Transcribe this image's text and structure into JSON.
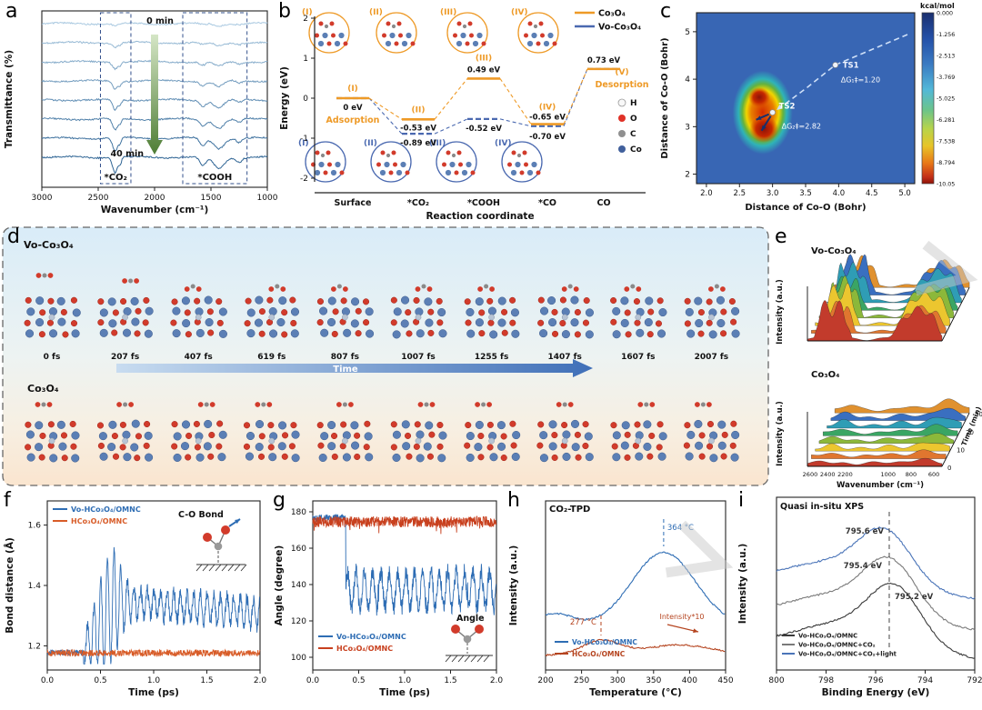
{
  "figure": {
    "panel_labels": {
      "a": "a",
      "b": "b",
      "c": "c",
      "d": "d",
      "e": "e",
      "f": "f",
      "g": "g",
      "h": "h",
      "i": "i"
    }
  },
  "chart_data": [
    {
      "id": "a",
      "type": "line",
      "kind": "ftir-spectra",
      "xlabel": "Wavenumber (cm⁻¹)",
      "ylabel": "Transmittance (%)",
      "xticks": [
        3000,
        2500,
        2000,
        1500,
        1000
      ],
      "x_range": [
        3000,
        1000
      ],
      "n_spectra": 8,
      "annotations": {
        "time_start": "0 min",
        "time_end": "40 min",
        "band1": "*CO₂",
        "band2": "*COOH"
      },
      "bands": {
        "co2_center": 2350,
        "cooh_center": 1460
      },
      "colors": {
        "light": "#a8c8e0",
        "dark": "#2e6494",
        "arrow_top": "#d5e6c6",
        "arrow_bottom": "#4e7d35",
        "box": "#33508c"
      }
    },
    {
      "id": "b",
      "type": "line",
      "kind": "energy-diagram",
      "xlabel": "Reaction coordinate",
      "ylabel": "Energy (eV)",
      "yticks": [
        2,
        1,
        0,
        -1,
        -2
      ],
      "ylim": [
        -2,
        2
      ],
      "categories": [
        "Surface",
        "*CO₂",
        "*COOH",
        "*CO",
        "CO"
      ],
      "series": [
        {
          "name": "Co₃O₄",
          "color": "#ee9a27",
          "style": "solid",
          "values": [
            0,
            -0.53,
            0.49,
            -0.65,
            0.73
          ],
          "value_labels": [
            "0 eV",
            "-0.53 eV",
            "0.49 eV",
            "-0.65 eV",
            "0.73 eV"
          ]
        },
        {
          "name": "Vo-Co₃O₄",
          "color": "#4a69b0",
          "style": "dashed",
          "values": [
            0,
            -0.89,
            -0.52,
            -0.7,
            0.73
          ],
          "value_labels": [
            "",
            "-0.89 eV",
            "-0.52 eV",
            "-0.70 eV",
            ""
          ]
        }
      ],
      "state_labels_top": [
        "(I)",
        "(II)",
        "(III)",
        "(IV)"
      ],
      "state_labels_bottom": [
        "(I)",
        "(II)",
        "(III)",
        "(IV)"
      ],
      "state_label_v": "(V)",
      "phase_labels": {
        "adsorption": "Adsorption",
        "desorption": "Desorption"
      },
      "atom_legend": [
        {
          "name": "H",
          "color": "#f8f8f8"
        },
        {
          "name": "O",
          "color": "#e03127"
        },
        {
          "name": "C",
          "color": "#909090"
        },
        {
          "name": "Co",
          "color": "#41609c"
        }
      ]
    },
    {
      "id": "c",
      "type": "heatmap",
      "kind": "free-energy-surface",
      "xlabel": "Distance of Co-O (Bohr)",
      "ylabel": "Distance of Co-O (Bohr)",
      "xticks": [
        2.0,
        2.5,
        3.0,
        3.5,
        4.0,
        4.5,
        5.0
      ],
      "yticks": [
        2,
        3,
        4,
        5
      ],
      "xlim": [
        1.85,
        5.15
      ],
      "ylim": [
        1.8,
        5.4
      ],
      "colorbar": {
        "title": "kcal/mol",
        "ticks": [
          "0.000",
          "-1.256",
          "-2.513",
          "-3.769",
          "-5.025",
          "-6.281",
          "-7.538",
          "-8.794",
          "-10.05"
        ]
      },
      "annotations": [
        {
          "label": "TS1",
          "text": "ΔG₁‡=1.20",
          "x": 3.95,
          "y": 4.3
        },
        {
          "label": "TS2",
          "text": "ΔG₂‡=2.82",
          "x": 3.0,
          "y": 3.3
        }
      ],
      "minima": [
        {
          "x": 2.85,
          "y": 3.0
        },
        {
          "x": 2.8,
          "y": 3.6
        }
      ]
    },
    {
      "id": "d",
      "type": "table",
      "kind": "aimd-snapshots",
      "rows": [
        {
          "name": "Vo-Co₃O₄",
          "times": [
            "0 fs",
            "207 fs",
            "407 fs",
            "619 fs",
            "807 fs",
            "1007 fs",
            "1255 fs",
            "1407 fs",
            "1607 fs",
            "2007 fs"
          ]
        },
        {
          "name": "Co₃O₄"
        }
      ],
      "arrow_label": "Time"
    },
    {
      "id": "e",
      "type": "area",
      "kind": "insitu-3d-spectra",
      "subpanels": [
        "Vo-Co₃O₄",
        "Co₃O₄"
      ],
      "xlabel": "Wavenumber (cm⁻¹)",
      "ylabel": "Intensity (a.u.)",
      "zlabel": "Time (min)",
      "xticks": [
        2600,
        2400,
        2200,
        1000,
        800,
        600
      ],
      "zticks": [
        0,
        10,
        20,
        30
      ],
      "trace_colors": [
        "#c23b2c",
        "#e0762f",
        "#ecc62f",
        "#8cb83a",
        "#3aa564",
        "#2f9db5",
        "#3a6fc0",
        "#e0912f"
      ]
    },
    {
      "id": "f",
      "type": "line",
      "kind": "bond-distance-md",
      "xlabel": "Time (ps)",
      "ylabel": "Bond distance (Å)",
      "xticks": [
        0.0,
        0.5,
        1.0,
        1.5,
        2.0
      ],
      "yticks": [
        1.2,
        1.4,
        1.6
      ],
      "xlim": [
        0,
        2
      ],
      "ylim": [
        1.12,
        1.68
      ],
      "series": [
        {
          "name": "Vo-HCo₃O₄/OMNC",
          "color": "#2e6db4"
        },
        {
          "name": "HCo₃O₄/OMNC",
          "color": "#d85c28"
        }
      ],
      "annotation": "C-O Bond"
    },
    {
      "id": "g",
      "type": "line",
      "kind": "angle-md",
      "xlabel": "Time (ps)",
      "ylabel": "Angle (degree)",
      "xticks": [
        0.0,
        0.5,
        1.0,
        1.5,
        2.0
      ],
      "yticks": [
        100,
        120,
        140,
        160,
        180
      ],
      "xlim": [
        0,
        2
      ],
      "ylim": [
        93,
        186
      ],
      "series": [
        {
          "name": "Vo-HCo₃O₄/OMNC",
          "color": "#2e6db4"
        },
        {
          "name": "HCo₃O₄/OMNC",
          "color": "#c8401e"
        }
      ],
      "annotation": "Angle"
    },
    {
      "id": "h",
      "type": "line",
      "kind": "co2-tpd",
      "title": "CO₂-TPD",
      "xlabel": "Temperature (°C)",
      "ylabel": "Intensity (a.u.)",
      "xticks": [
        200,
        250,
        300,
        350,
        400,
        450
      ],
      "xlim": [
        200,
        450
      ],
      "series": [
        {
          "name": "Vo-HCo₃O₄/OMNC",
          "color": "#2e6db4",
          "peak": 364,
          "peak_label": "364 °C"
        },
        {
          "name": "HCo₃O₄/OMNC",
          "color": "#b5441f",
          "peak": 277,
          "peak_label": "277 °C"
        }
      ],
      "annotation": "Intensity*10"
    },
    {
      "id": "i",
      "type": "line",
      "kind": "xps",
      "title": "Quasi in-situ XPS",
      "xlabel": "Binding Energy (eV)",
      "ylabel": "Intensity (a.u.)",
      "xticks": [
        800,
        798,
        796,
        794,
        792
      ],
      "xlim": [
        800,
        792
      ],
      "series": [
        {
          "name": "Vo-HCo₃O₄/OMNC",
          "color": "#3a3a3a",
          "peak": 795.2,
          "peak_label": "795.2 eV"
        },
        {
          "name": "Vo-HCo₃O₄/OMNC+CO₂",
          "color": "#7a7a7a",
          "peak": 795.4,
          "peak_label": "795.4 eV"
        },
        {
          "name": "Vo-HCo₃O₄/OMNC+CO₂+light",
          "color": "#4a74b8",
          "peak": 795.6,
          "peak_label": "795.6 eV"
        }
      ]
    }
  ]
}
